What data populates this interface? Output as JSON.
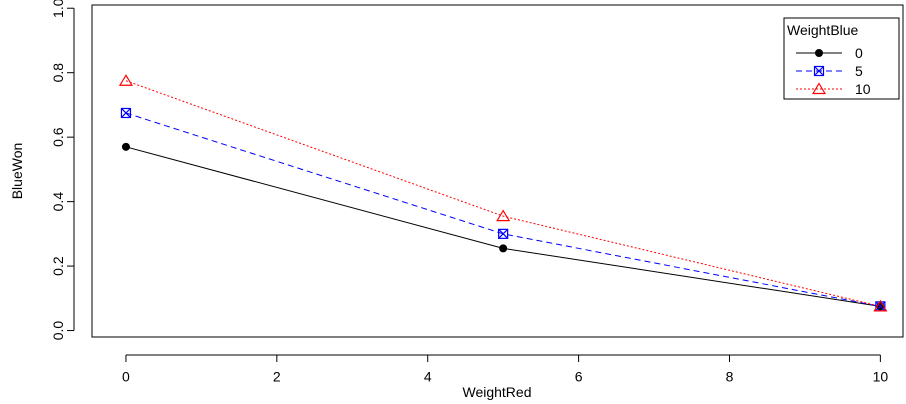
{
  "chart_data": {
    "type": "line",
    "title": "",
    "xlabel": "WeightRed",
    "ylabel": "BlueWon",
    "x": [
      0,
      5,
      10
    ],
    "xlim": [
      -0.45,
      10.3
    ],
    "ylim": [
      -0.02,
      1.01
    ],
    "xticks": [
      0,
      2,
      4,
      6,
      8,
      10
    ],
    "yticks": [
      0.0,
      0.2,
      0.4,
      0.6,
      0.8,
      1.0
    ],
    "xtick_labels": [
      "0",
      "2",
      "4",
      "6",
      "8",
      "10"
    ],
    "ytick_labels": [
      "0.0",
      "0.2",
      "0.4",
      "0.6",
      "0.8",
      "1.0"
    ],
    "grid": false,
    "legend": {
      "title": "WeightBlue",
      "position": "top-right"
    },
    "series": [
      {
        "name": "0",
        "values": [
          0.57,
          0.255,
          0.075
        ],
        "color": "#000000",
        "line_style": "solid",
        "marker": "filled-circle"
      },
      {
        "name": "5",
        "values": [
          0.675,
          0.3,
          0.075
        ],
        "color": "#0000ff",
        "line_style": "dashed",
        "marker": "boxed-x"
      },
      {
        "name": "10",
        "values": [
          0.775,
          0.355,
          0.075
        ],
        "color": "#ff0000",
        "line_style": "dotted",
        "marker": "triangle"
      }
    ]
  }
}
